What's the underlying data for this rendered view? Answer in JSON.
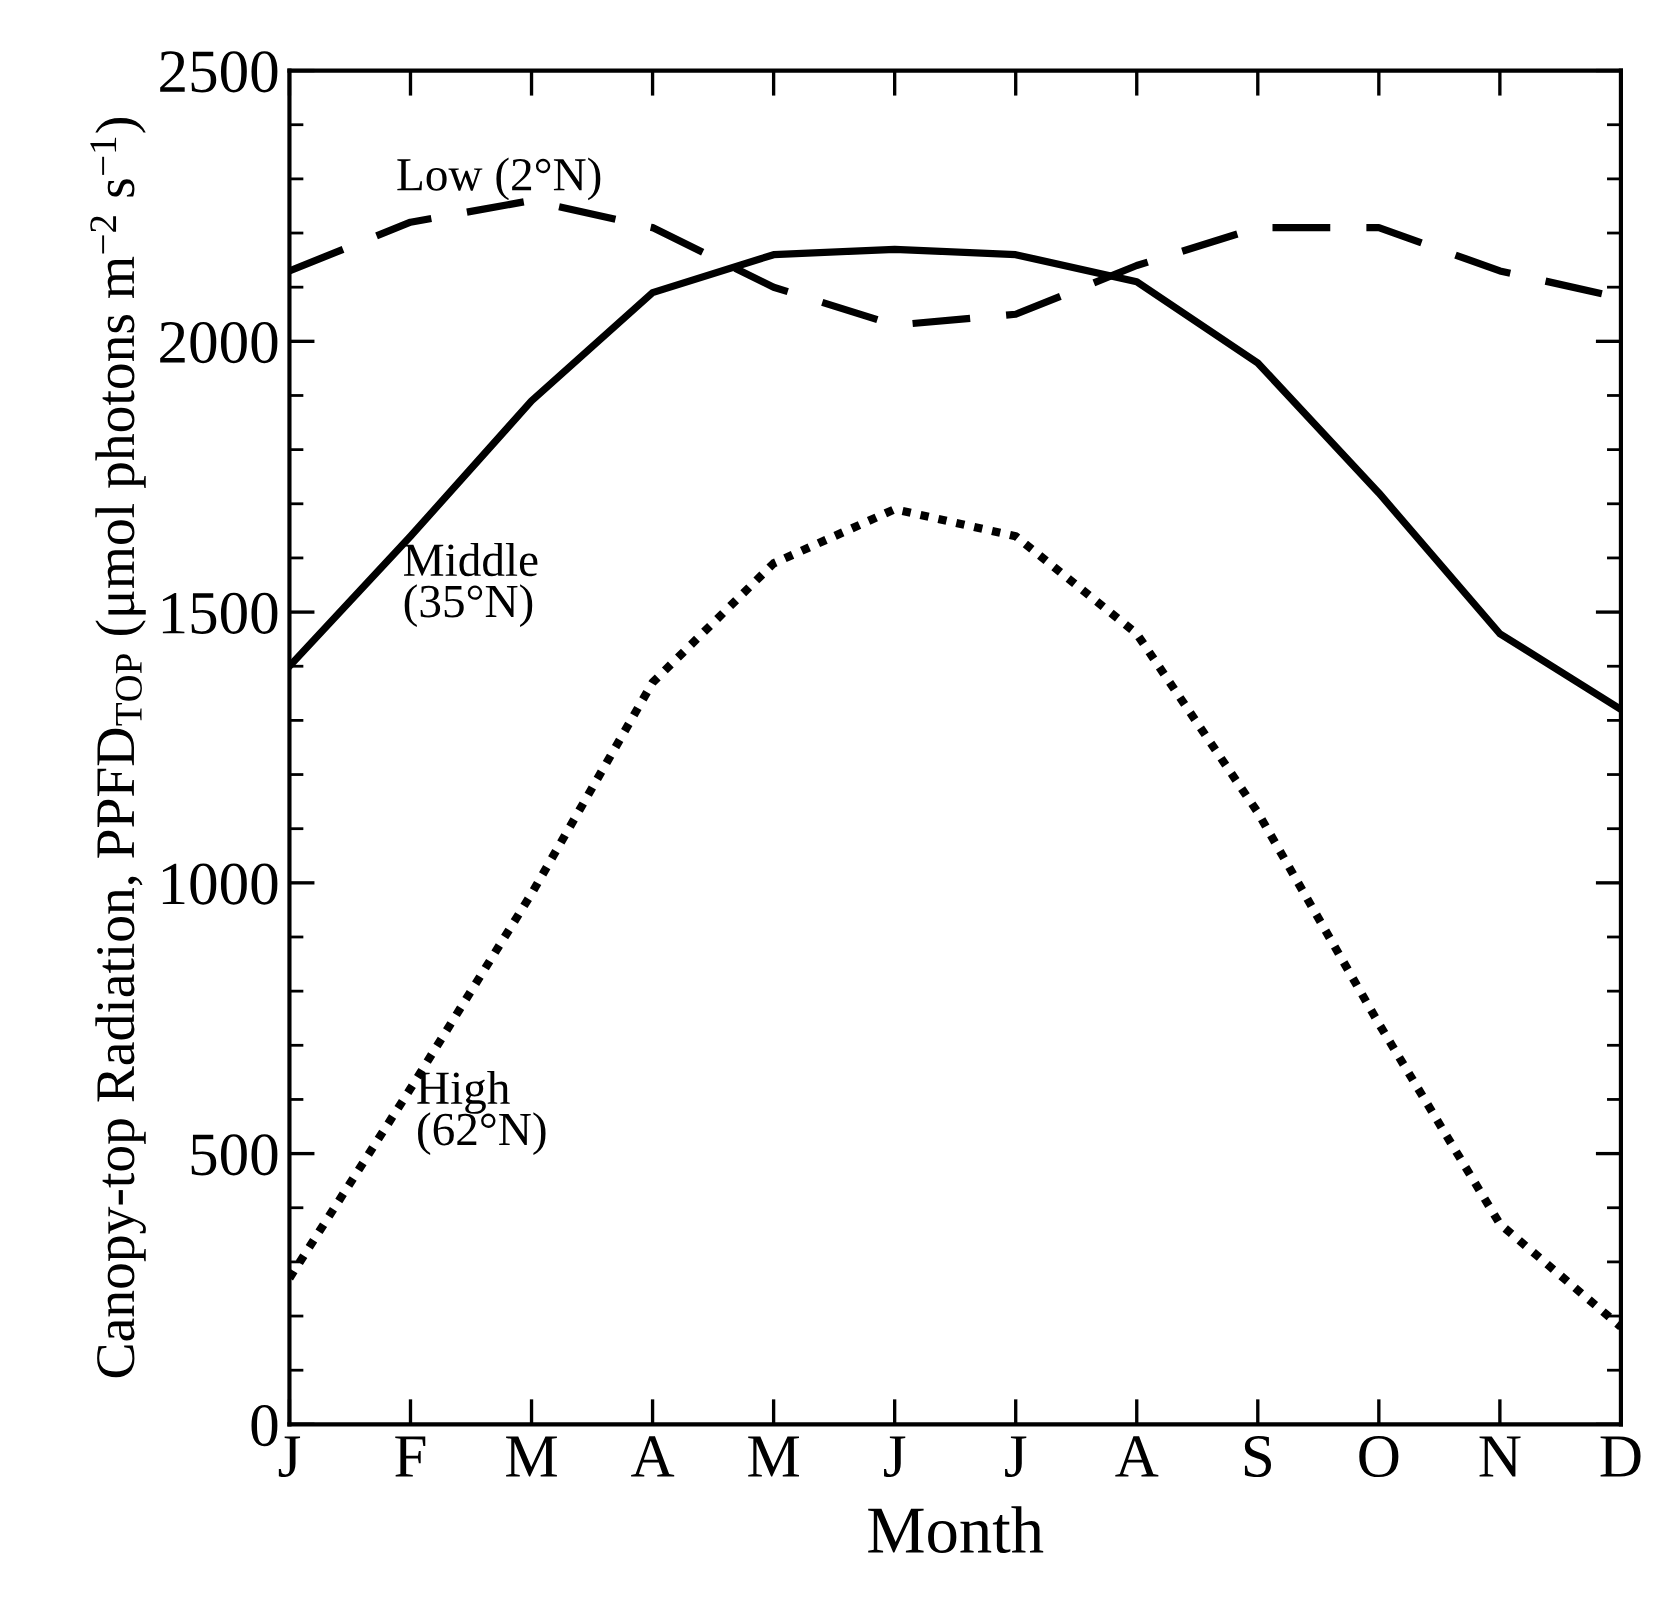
{
  "chart_data": {
    "type": "line",
    "xlabel": "Month",
    "ylabel": "Canopy-top Radiation, PPFD$_{TOP}$ (μmol photons m$^{−2}$ s$^{−1}$)",
    "categories": [
      "J",
      "F",
      "M",
      "A",
      "M",
      "J",
      "J",
      "A",
      "S",
      "O",
      "N",
      "D"
    ],
    "series": [
      {
        "color": "#000000",
        "line_style": "dashed",
        "values": [
          2130,
          2220,
          2260,
          2210,
          2100,
          2030,
          2050,
          2140,
          2210,
          2210,
          2130,
          2080
        ]
      },
      {
        "color": "#000000",
        "line_style": "solid",
        "values": [
          1400,
          1640,
          1890,
          2090,
          2160,
          2170,
          2160,
          2110,
          1960,
          1720,
          1460,
          1320
        ]
      },
      {
        "color": "#000000",
        "line_style": "dotted",
        "values": [
          270,
          620,
          980,
          1370,
          1590,
          1690,
          1640,
          1460,
          1130,
          740,
          370,
          180
        ]
      }
    ],
    "annotations": [
      "Low (2°N)",
      "Middle\n(35°N)",
      "High\n(62°N)"
    ],
    "ylim": [
      0,
      2500
    ],
    "yticks": [
      0,
      500,
      1000,
      1500,
      2000,
      2500
    ],
    "grid": false,
    "marker": "none"
  }
}
